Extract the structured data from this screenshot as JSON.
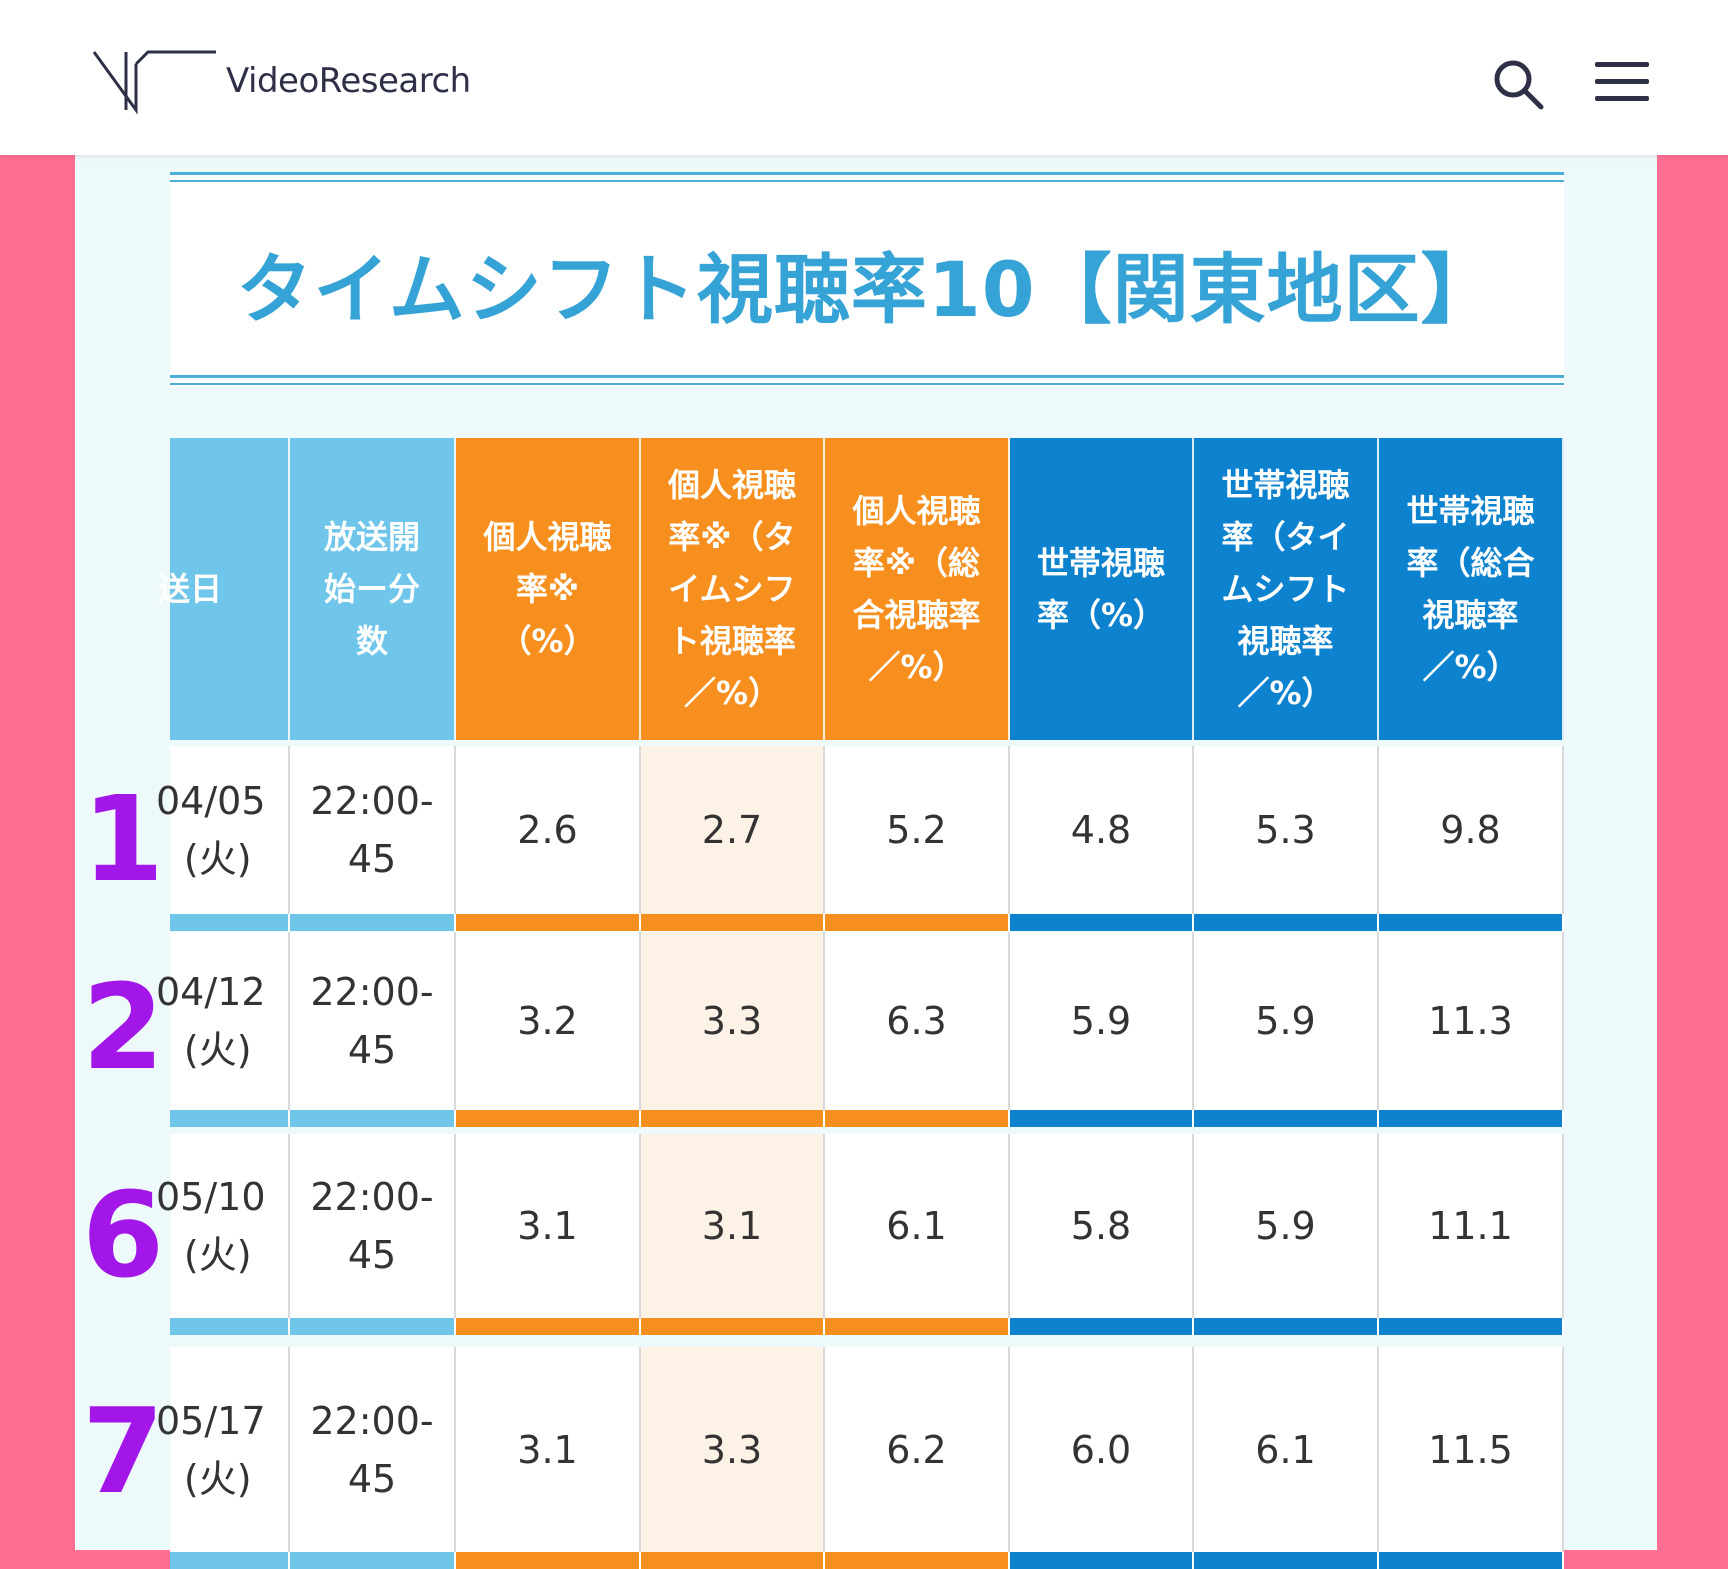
{
  "header": {
    "logo_text": "VideoResearch",
    "search_icon": "search-icon",
    "menu_icon": "hamburger-menu-icon"
  },
  "title": "タイムシフト視聴率10【関東地区】",
  "colors": {
    "accent_pink": "#ff6f93",
    "title_blue": "#35a3d6",
    "header_light_blue": "#6fc6ea",
    "header_orange": "#f78f1e",
    "header_blue": "#0d82cf",
    "rank_purple": "#a316e8"
  },
  "table": {
    "columns": [
      "送日",
      "放送開\n始ー分\n数",
      "個人視聴\n率※\n（%）",
      "個人視聴\n率※（タ\nイムシフ\nト視聴率\n／%）",
      "個人視聴\n率※（総\n合視聴率\n／%）",
      "世帯視聴\n率（%）",
      "世帯視聴\n率（タイ\nムシフト\n視聴率\n／%）",
      "世帯視聴\n率（総合\n視聴率\n／%）"
    ],
    "rows": [
      {
        "rank": "1",
        "date": "04/05\n(火)",
        "time": "22:00-\n45",
        "p": "2.6",
        "p_ts": "2.7",
        "p_total": "5.2",
        "h": "4.8",
        "h_ts": "5.3",
        "h_total": "9.8"
      },
      {
        "rank": "2",
        "date": "04/12\n(火)",
        "time": "22:00-\n45",
        "p": "3.2",
        "p_ts": "3.3",
        "p_total": "6.3",
        "h": "5.9",
        "h_ts": "5.9",
        "h_total": "11.3"
      },
      {
        "rank": "6",
        "date": "05/10\n(火)",
        "time": "22:00-\n45",
        "p": "3.1",
        "p_ts": "3.1",
        "p_total": "6.1",
        "h": "5.8",
        "h_ts": "5.9",
        "h_total": "11.1"
      },
      {
        "rank": "7",
        "date": "05/17\n(火)",
        "time": "22:00-\n45",
        "p": "3.1",
        "p_ts": "3.3",
        "p_total": "6.2",
        "h": "6.0",
        "h_ts": "6.1",
        "h_total": "11.5"
      }
    ]
  }
}
